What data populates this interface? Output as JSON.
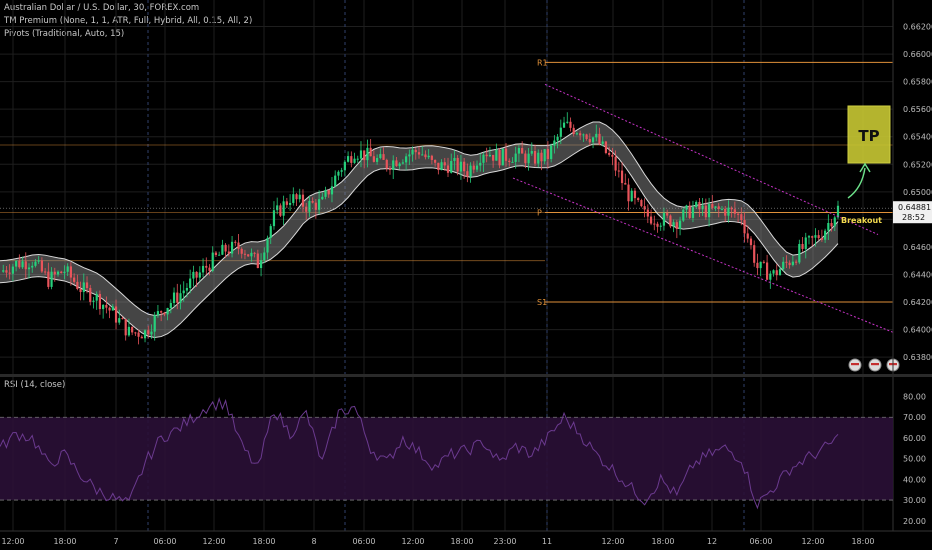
{
  "header": {
    "symbol_line": "Australian Dollar / U.S. Dollar, 30, FOREX.com",
    "indicator_1": "TM Premium (None, 1, 1, ATR, Full, Hybrid, All, 0.15, All, 2)",
    "indicator_2": "Pivots (Traditional, Auto, 15)"
  },
  "rsi_panel": {
    "label": "RSI (14, close)"
  },
  "colors": {
    "up": "#26d07c",
    "down": "#e8545b",
    "band": "#d9d9d9",
    "pivot": "#e0913a",
    "channel": "#c633c6",
    "rsi_line": "#6b3a8f",
    "rsi_fill": "#2a0f36",
    "tp_fill": "#c8c833",
    "tp_border": "#e6e64a",
    "arrow": "#6de28a",
    "breakout": "#f2d94e"
  },
  "annotations": {
    "tp_label": "TP",
    "breakout_label": "Breakout",
    "current_price": "0.64881",
    "countdown": "28:52"
  },
  "chart_data": [
    {
      "type": "candlestick",
      "title": "Australian Dollar / U.S. Dollar, 30, FOREX.com",
      "x_ticks": [
        "12:00",
        "18:00",
        "7",
        "06:00",
        "12:00",
        "18:00",
        "8",
        "06:00",
        "12:00",
        "18:00",
        "23:00",
        "11",
        "12:00",
        "18:00",
        "12",
        "06:00",
        "12:00",
        "18:00"
      ],
      "y_ticks": [
        0.638,
        0.64,
        0.642,
        0.644,
        0.646,
        0.648,
        0.65,
        0.652,
        0.654,
        0.656,
        0.658,
        0.66,
        0.662
      ],
      "ylim": [
        0.6375,
        0.6632
      ],
      "pivot_levels": [
        {
          "name": "R1",
          "value": 0.6594
        },
        {
          "name": "P",
          "value": 0.6485
        },
        {
          "name": "S1",
          "value": 0.642
        }
      ],
      "close_path": [
        [
          0,
          0.6442
        ],
        [
          10,
          0.6448
        ],
        [
          20,
          0.645
        ],
        [
          30,
          0.6436
        ],
        [
          40,
          0.6443
        ],
        [
          50,
          0.643
        ],
        [
          60,
          0.6423
        ],
        [
          70,
          0.6412
        ],
        [
          80,
          0.6398
        ],
        [
          90,
          0.6398
        ],
        [
          100,
          0.6414
        ],
        [
          110,
          0.6424
        ],
        [
          120,
          0.6436
        ],
        [
          130,
          0.6448
        ],
        [
          140,
          0.6458
        ],
        [
          150,
          0.646
        ],
        [
          160,
          0.6448
        ],
        [
          170,
          0.6482
        ],
        [
          180,
          0.6496
        ],
        [
          190,
          0.649
        ],
        [
          200,
          0.6492
        ],
        [
          210,
          0.6515
        ],
        [
          220,
          0.653
        ],
        [
          230,
          0.6525
        ],
        [
          240,
          0.652
        ],
        [
          250,
          0.6526
        ],
        [
          260,
          0.653
        ],
        [
          270,
          0.6518
        ],
        [
          280,
          0.652
        ],
        [
          290,
          0.6515
        ],
        [
          300,
          0.653
        ],
        [
          310,
          0.6525
        ],
        [
          320,
          0.6527
        ],
        [
          330,
          0.6524
        ],
        [
          340,
          0.6526
        ],
        [
          350,
          0.6548
        ],
        [
          360,
          0.6545
        ],
        [
          370,
          0.6538
        ],
        [
          380,
          0.6522
        ],
        [
          390,
          0.6498
        ],
        [
          400,
          0.6483
        ],
        [
          410,
          0.648
        ],
        [
          420,
          0.6479
        ],
        [
          430,
          0.6488
        ],
        [
          440,
          0.6486
        ],
        [
          450,
          0.6487
        ],
        [
          460,
          0.6482
        ],
        [
          470,
          0.6445
        ],
        [
          480,
          0.644
        ],
        [
          490,
          0.645
        ],
        [
          500,
          0.6461
        ],
        [
          510,
          0.647
        ],
        [
          520,
          0.6488
        ]
      ],
      "rsi": {
        "ylim": [
          17,
          87
        ],
        "y_ticks": [
          20,
          30,
          40,
          50,
          60,
          70,
          80
        ],
        "bands": [
          30,
          70
        ],
        "path": [
          [
            0,
            55
          ],
          [
            10,
            62
          ],
          [
            20,
            60
          ],
          [
            30,
            47
          ],
          [
            40,
            52
          ],
          [
            50,
            42
          ],
          [
            60,
            35
          ],
          [
            70,
            31
          ],
          [
            80,
            28
          ],
          [
            90,
            48
          ],
          [
            100,
            60
          ],
          [
            110,
            64
          ],
          [
            120,
            70
          ],
          [
            130,
            76
          ],
          [
            140,
            77
          ],
          [
            150,
            56
          ],
          [
            160,
            45
          ],
          [
            170,
            74
          ],
          [
            180,
            62
          ],
          [
            190,
            72
          ],
          [
            200,
            48
          ],
          [
            210,
            72
          ],
          [
            220,
            75
          ],
          [
            230,
            55
          ],
          [
            240,
            48
          ],
          [
            250,
            60
          ],
          [
            260,
            53
          ],
          [
            270,
            46
          ],
          [
            280,
            52
          ],
          [
            290,
            54
          ],
          [
            300,
            58
          ],
          [
            310,
            48
          ],
          [
            320,
            56
          ],
          [
            330,
            52
          ],
          [
            340,
            60
          ],
          [
            350,
            70
          ],
          [
            360,
            62
          ],
          [
            370,
            52
          ],
          [
            380,
            45
          ],
          [
            390,
            37
          ],
          [
            400,
            30
          ],
          [
            410,
            40
          ],
          [
            420,
            32
          ],
          [
            430,
            47
          ],
          [
            440,
            52
          ],
          [
            450,
            55
          ],
          [
            460,
            50
          ],
          [
            470,
            28
          ],
          [
            480,
            36
          ],
          [
            490,
            45
          ],
          [
            500,
            50
          ],
          [
            510,
            54
          ],
          [
            520,
            60
          ]
        ]
      }
    }
  ]
}
